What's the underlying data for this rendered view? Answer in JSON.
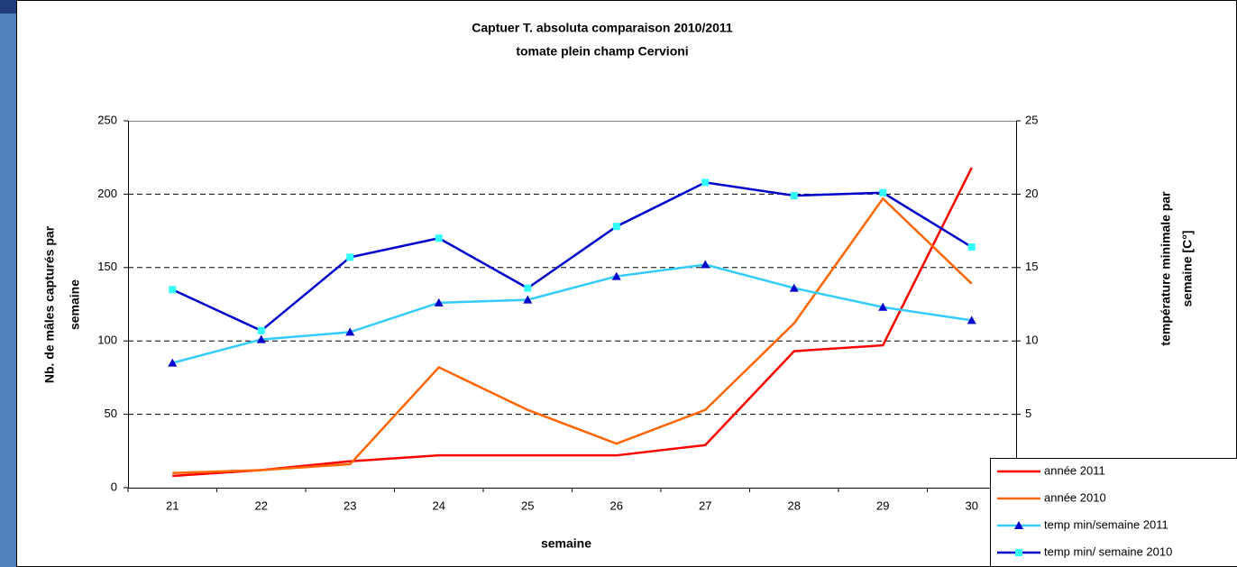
{
  "chart_data": {
    "type": "line",
    "title": "Captuer T. absoluta comparaison 2010/2011",
    "subtitle": "tomate plein champ Cervioni",
    "x_label": "semaine",
    "y_label": [
      "Nb. de mâles capturés par",
      "semaine"
    ],
    "y2_label": [
      "température minimale par",
      "semaine [C°]"
    ],
    "categories": [
      "21",
      "22",
      "23",
      "24",
      "25",
      "26",
      "27",
      "28",
      "29",
      "30"
    ],
    "ylim": [
      0,
      250
    ],
    "yticks": [
      0,
      50,
      100,
      150,
      200,
      250
    ],
    "y2lim": [
      0,
      25
    ],
    "y2ticks": [
      0,
      5,
      10,
      15,
      20,
      25
    ],
    "grid": true,
    "legend": "bottom-right",
    "series": [
      {
        "name": "année 2011",
        "color": "#ff0000",
        "values": [
          8,
          12,
          18,
          22,
          22,
          22,
          29,
          93,
          97,
          218
        ]
      },
      {
        "name": "année 2010",
        "color": "#ff6600",
        "values": [
          10,
          12,
          16,
          82,
          53,
          30,
          53,
          112,
          197,
          139
        ]
      },
      {
        "name": "temp min/semaine 2011",
        "color": "#33ccff",
        "marker": "triangle",
        "marker_color": "#0000cc",
        "axis": "y2",
        "values": [
          8.5,
          10.1,
          10.6,
          12.6,
          12.8,
          14.4,
          15.2,
          13.6,
          12.3,
          11.4
        ]
      },
      {
        "name": "temp min/ semaine 2010",
        "color": "#0000cc",
        "marker": "square",
        "marker_color": "#33ffff",
        "axis": "y2",
        "values": [
          13.5,
          10.7,
          15.7,
          17.0,
          13.6,
          17.8,
          20.8,
          19.9,
          20.1,
          16.4
        ]
      }
    ]
  }
}
